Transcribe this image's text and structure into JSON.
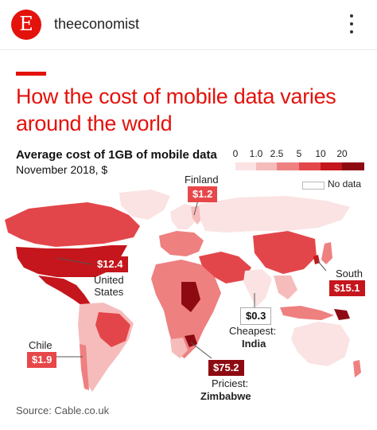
{
  "post": {
    "avatar_letter": "E",
    "username": "theeconomist",
    "brand_color": "#e3120b"
  },
  "chart": {
    "title_line1": "How the cost of mobile data varies",
    "title_line2": "around the world",
    "subtitle": "Average cost of 1GB of mobile data",
    "date_unit": "November 2018, $",
    "source": "Source: Cable.co.uk"
  },
  "legend": {
    "ticks": [
      "0",
      "1.0",
      "2.5",
      "5",
      "10",
      "20"
    ],
    "colors": [
      "#fbe3e3",
      "#f6bcbc",
      "#ee8080",
      "#e3464a",
      "#c4161c",
      "#8e0a12"
    ],
    "no_data_label": "No data"
  },
  "callouts": {
    "finland": {
      "name": "Finland",
      "value": "$1.2"
    },
    "united_states": {
      "name_line1": "United",
      "name_line2": "States",
      "value": "$12.4"
    },
    "south_korea": {
      "name": "South Korea",
      "value": "$15.1"
    },
    "india": {
      "value": "$0.3",
      "label": "Cheapest:",
      "name": "India"
    },
    "chile": {
      "name": "Chile",
      "value": "$1.9"
    },
    "zimbabwe": {
      "value": "$75.2",
      "label": "Priciest:",
      "name": "Zimbabwe"
    }
  },
  "chart_data": {
    "type": "choropleth",
    "metric": "Average cost of 1GB of mobile data",
    "unit": "$",
    "date": "November 2018",
    "legend_breaks": [
      0,
      1.0,
      2.5,
      5,
      10,
      20
    ],
    "highlighted": [
      {
        "country": "Finland",
        "value": 1.2
      },
      {
        "country": "United States",
        "value": 12.4
      },
      {
        "country": "South Korea",
        "value": 15.1
      },
      {
        "country": "India",
        "value": 0.3,
        "note": "Cheapest"
      },
      {
        "country": "Chile",
        "value": 1.9
      },
      {
        "country": "Zimbabwe",
        "value": 75.2,
        "note": "Priciest"
      }
    ]
  }
}
